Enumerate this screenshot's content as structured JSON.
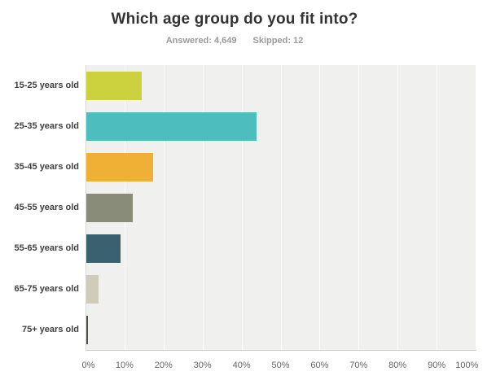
{
  "header": {
    "title": "Which age group do you fit into?",
    "answered_label": "Answered: 4,649",
    "skipped_label": "Skipped: 12"
  },
  "chart_data": {
    "type": "bar",
    "orientation": "horizontal",
    "title": "Which age group do you fit into?",
    "answered": 4649,
    "skipped": 12,
    "categories": [
      "15-25 years old",
      "25-35 years old",
      "35-45 years old",
      "45-55 years old",
      "55-65 years old",
      "65-75 years old",
      "75+ years old"
    ],
    "values": [
      14.3,
      43.7,
      17.2,
      12.0,
      8.7,
      3.2,
      0.4
    ],
    "unit": "%",
    "bar_colors": [
      "#cbd23d",
      "#4ebdbe",
      "#f0b036",
      "#8a8c7a",
      "#3a6170",
      "#cfccba",
      "#4f5347"
    ],
    "xlim": [
      0,
      100
    ],
    "x_ticks": [
      "0%",
      "10%",
      "20%",
      "30%",
      "40%",
      "50%",
      "60%",
      "70%",
      "80%",
      "90%",
      "100%"
    ],
    "grid": true,
    "legend": "none",
    "plot_background": "#f0f0ef",
    "gridline_color": "#ffffff"
  }
}
